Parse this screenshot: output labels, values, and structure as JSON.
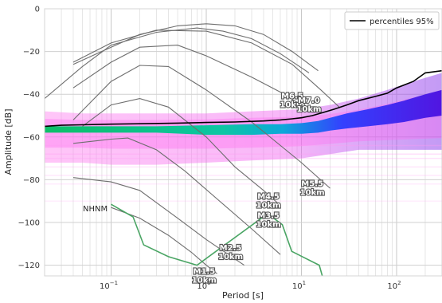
{
  "chart_data": {
    "type": "heatmap",
    "title": "",
    "xlabel": "Period [s]",
    "ylabel": "Amplitude [dB]",
    "xscale": "log",
    "xlim": [
      0.02,
      300
    ],
    "ylim": [
      -125,
      0
    ],
    "x_ticks": [
      {
        "value": 0.1,
        "base": "10",
        "exp": "−1"
      },
      {
        "value": 1,
        "base": "10",
        "exp": "0"
      },
      {
        "value": 10,
        "base": "10",
        "exp": "1"
      },
      {
        "value": 100,
        "base": "10",
        "exp": "2"
      }
    ],
    "y_ticks": [
      {
        "value": 0,
        "label": "0"
      },
      {
        "value": -20,
        "label": "−20"
      },
      {
        "value": -40,
        "label": "−40"
      },
      {
        "value": -60,
        "label": "−60"
      },
      {
        "value": -80,
        "label": "−80"
      },
      {
        "value": -100,
        "label": "−100"
      },
      {
        "value": -120,
        "label": "−120"
      }
    ],
    "grid": true,
    "legend": {
      "position": "top-right",
      "entries": [
        {
          "name": "percentiles 95%",
          "color": "#000000"
        }
      ]
    },
    "percentile_95": {
      "name": "percentiles 95%",
      "color": "#000000",
      "points": [
        [
          0.02,
          -55
        ],
        [
          0.03,
          -54.5
        ],
        [
          0.05,
          -54.3
        ],
        [
          0.1,
          -54
        ],
        [
          0.2,
          -53.8
        ],
        [
          0.5,
          -53.5
        ],
        [
          1,
          -53.2
        ],
        [
          2,
          -53
        ],
        [
          4,
          -52.5
        ],
        [
          6,
          -52
        ],
        [
          8,
          -51.5
        ],
        [
          10,
          -51
        ],
        [
          13,
          -50
        ],
        [
          17,
          -48.5
        ],
        [
          22,
          -47
        ],
        [
          30,
          -45
        ],
        [
          40,
          -43
        ],
        [
          60,
          -41
        ],
        [
          80,
          -39.5
        ],
        [
          100,
          -37
        ],
        [
          150,
          -34
        ],
        [
          200,
          -30
        ],
        [
          300,
          -29
        ]
      ]
    },
    "psd_density": {
      "core_band": [
        [
          0.02,
          -58,
          -55
        ],
        [
          0.05,
          -58,
          -55
        ],
        [
          0.1,
          -58,
          -55
        ],
        [
          0.3,
          -58,
          -55
        ],
        [
          1,
          -59,
          -54.5
        ],
        [
          3,
          -59,
          -54
        ],
        [
          6,
          -58.5,
          -54
        ],
        [
          10,
          -58.5,
          -53.5
        ],
        [
          15,
          -58,
          -52.5
        ],
        [
          20,
          -57,
          -51
        ],
        [
          30,
          -56,
          -49
        ],
        [
          50,
          -55,
          -47
        ],
        [
          80,
          -54,
          -45
        ],
        [
          120,
          -53,
          -43
        ],
        [
          200,
          -51,
          -40
        ],
        [
          300,
          -50,
          -38
        ]
      ],
      "outer_band": [
        [
          0.02,
          -72,
          -48
        ],
        [
          0.05,
          -72,
          -49
        ],
        [
          0.1,
          -73,
          -49
        ],
        [
          0.3,
          -73,
          -49
        ],
        [
          1,
          -72,
          -49
        ],
        [
          3,
          -71,
          -48
        ],
        [
          10,
          -70,
          -47
        ],
        [
          20,
          -68,
          -45
        ],
        [
          40,
          -66,
          -42
        ],
        [
          80,
          -66,
          -38
        ],
        [
          150,
          -66,
          -34
        ],
        [
          300,
          -66,
          -30
        ]
      ]
    },
    "nhnm": {
      "label": "NHNM",
      "color": "#4aa564",
      "points": [
        [
          0.1,
          -91.5
        ],
        [
          0.17,
          -97.4
        ],
        [
          0.22,
          -110.5
        ],
        [
          0.4,
          -116
        ],
        [
          0.8,
          -120
        ],
        [
          3.8,
          -98
        ],
        [
          4.6,
          -96.5
        ],
        [
          6.3,
          -101
        ],
        [
          7.9,
          -113.5
        ],
        [
          15.4,
          -120
        ],
        [
          20,
          -138
        ]
      ]
    },
    "earthquake_models": [
      {
        "label_m": "M1.5",
        "label_d": "10km",
        "label_at": [
          0.95,
          -124
        ],
        "points": [
          [
            0.1,
            -93
          ],
          [
            0.2,
            -98
          ],
          [
            0.4,
            -106
          ],
          [
            0.7,
            -114
          ],
          [
            1,
            -120
          ],
          [
            1.3,
            -124
          ]
        ]
      },
      {
        "label_m": "M2.5",
        "label_d": "10km",
        "label_at": [
          1.8,
          -113
        ],
        "points": [
          [
            0.04,
            -79
          ],
          [
            0.1,
            -81
          ],
          [
            0.2,
            -85
          ],
          [
            0.5,
            -98
          ],
          [
            1,
            -108
          ],
          [
            2.5,
            -120
          ]
        ]
      },
      {
        "label_m": "M3.5",
        "label_d": "10km",
        "label_at": [
          4.5,
          -98
        ],
        "points": [
          [
            0.04,
            -63
          ],
          [
            0.1,
            -61
          ],
          [
            0.15,
            -60.5
          ],
          [
            0.3,
            -66
          ],
          [
            0.6,
            -76
          ],
          [
            1.3,
            -89
          ],
          [
            3,
            -103
          ],
          [
            6,
            -115
          ]
        ]
      },
      {
        "label_m": "M4.5",
        "label_d": "10km",
        "label_at": [
          4.5,
          -89
        ],
        "points": [
          [
            0.05,
            -55
          ],
          [
            0.1,
            -45
          ],
          [
            0.2,
            -42
          ],
          [
            0.4,
            -46
          ],
          [
            1,
            -60
          ],
          [
            2,
            -74
          ],
          [
            4,
            -85
          ],
          [
            6,
            -92
          ]
        ]
      },
      {
        "label_m": "M5.5",
        "label_d": "10km",
        "label_at": [
          13,
          -83
        ],
        "points": [
          [
            0.04,
            -52
          ],
          [
            0.1,
            -34
          ],
          [
            0.2,
            -26.5
          ],
          [
            0.4,
            -27
          ],
          [
            1,
            -38
          ],
          [
            3,
            -53
          ],
          [
            10,
            -72
          ],
          [
            20,
            -84
          ]
        ]
      },
      {
        "label_m": "M6.5",
        "label_d": "10km",
        "label_at": [
          8,
          -42
        ],
        "points": [
          [
            0.04,
            -37
          ],
          [
            0.1,
            -25
          ],
          [
            0.2,
            -18
          ],
          [
            0.5,
            -17
          ],
          [
            1,
            -22
          ],
          [
            3,
            -32
          ],
          [
            6,
            -39
          ],
          [
            10,
            -45
          ]
        ]
      },
      {
        "label_m": "M7.0",
        "label_d": "10km",
        "label_at": [
          12,
          -44
        ],
        "points": [
          [
            0.04,
            -25
          ],
          [
            0.1,
            -16
          ],
          [
            0.3,
            -10
          ],
          [
            1,
            -10.5
          ],
          [
            3,
            -16
          ],
          [
            8,
            -26
          ],
          [
            16,
            -38
          ],
          [
            25,
            -46
          ]
        ]
      },
      {
        "label_m": "",
        "label_d": "",
        "label_at": null,
        "points": [
          [
            0.04,
            -26
          ],
          [
            0.1,
            -18
          ],
          [
            0.2,
            -12
          ],
          [
            0.5,
            -8
          ],
          [
            1,
            -7
          ],
          [
            2,
            -8
          ],
          [
            4,
            -12
          ],
          [
            8,
            -20
          ],
          [
            15,
            -29
          ]
        ]
      },
      {
        "label_m": "",
        "label_d": "",
        "label_at": null,
        "points": [
          [
            0.02,
            -42
          ],
          [
            0.05,
            -27
          ],
          [
            0.1,
            -17
          ],
          [
            0.3,
            -11
          ],
          [
            0.8,
            -9
          ],
          [
            1.5,
            -10.5
          ],
          [
            3,
            -14
          ],
          [
            6,
            -21
          ],
          [
            12,
            -30
          ]
        ]
      }
    ]
  }
}
